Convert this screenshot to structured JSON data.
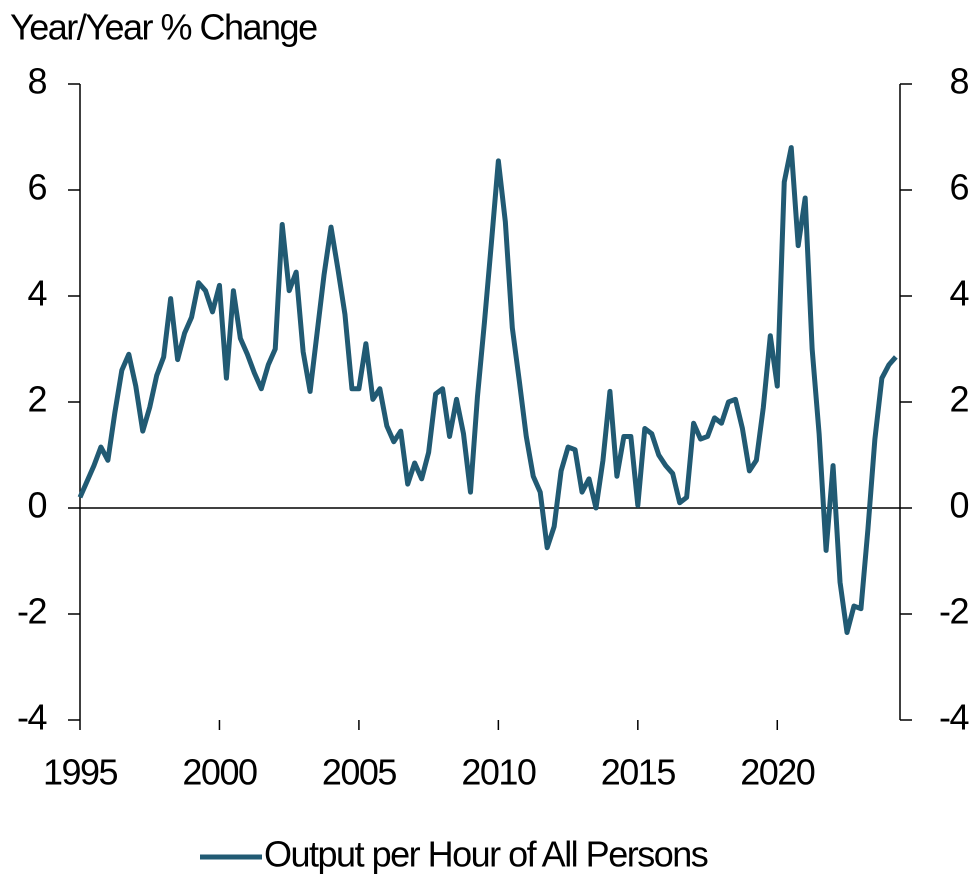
{
  "chart_data": {
    "type": "line",
    "ylabel": "Year/Year % Change",
    "x": [
      1995,
      1995.25,
      1995.5,
      1995.75,
      1996,
      1996.25,
      1996.5,
      1996.75,
      1997,
      1997.25,
      1997.5,
      1997.75,
      1998,
      1998.25,
      1998.5,
      1998.75,
      1999,
      1999.25,
      1999.5,
      1999.75,
      2000,
      2000.25,
      2000.5,
      2000.75,
      2001,
      2001.25,
      2001.5,
      2001.75,
      2002,
      2002.25,
      2002.5,
      2002.75,
      2003,
      2003.25,
      2003.5,
      2003.75,
      2004,
      2004.25,
      2004.5,
      2004.75,
      2005,
      2005.25,
      2005.5,
      2005.75,
      2006,
      2006.25,
      2006.5,
      2006.75,
      2007,
      2007.25,
      2007.5,
      2007.75,
      2008,
      2008.25,
      2008.5,
      2008.75,
      2009,
      2009.25,
      2009.5,
      2009.75,
      2010,
      2010.25,
      2010.5,
      2010.75,
      2011,
      2011.25,
      2011.5,
      2011.75,
      2012,
      2012.25,
      2012.5,
      2012.75,
      2013,
      2013.25,
      2013.5,
      2013.75,
      2014,
      2014.25,
      2014.5,
      2014.75,
      2015,
      2015.25,
      2015.5,
      2015.75,
      2016,
      2016.25,
      2016.5,
      2016.75,
      2017,
      2017.25,
      2017.5,
      2017.75,
      2018,
      2018.25,
      2018.5,
      2018.75,
      2019,
      2019.25,
      2019.5,
      2019.75,
      2020,
      2020.25,
      2020.5,
      2020.75,
      2021,
      2021.25,
      2021.5,
      2021.75,
      2022,
      2022.25,
      2022.5,
      2022.75,
      2023,
      2023.25,
      2023.5,
      2023.75,
      2024,
      2024.25
    ],
    "series": [
      {
        "name": "Output per Hour of All Persons",
        "color": "#215a73",
        "values": [
          0.2,
          0.5,
          0.8,
          1.15,
          0.9,
          1.8,
          2.6,
          2.9,
          2.3,
          1.45,
          1.9,
          2.5,
          2.85,
          3.95,
          2.8,
          3.3,
          3.6,
          4.25,
          4.1,
          3.7,
          4.2,
          2.45,
          4.1,
          3.2,
          2.9,
          2.55,
          2.25,
          2.7,
          3.0,
          5.35,
          4.1,
          4.45,
          2.95,
          2.2,
          3.3,
          4.4,
          5.3,
          4.5,
          3.65,
          2.25,
          2.25,
          3.1,
          2.05,
          2.25,
          1.55,
          1.25,
          1.45,
          0.45,
          0.85,
          0.55,
          1.05,
          2.15,
          2.25,
          1.35,
          2.05,
          1.4,
          0.3,
          2.1,
          3.5,
          5.0,
          6.55,
          5.4,
          3.4,
          2.4,
          1.35,
          0.6,
          0.3,
          -0.75,
          -0.35,
          0.7,
          1.15,
          1.1,
          0.3,
          0.55,
          0.0,
          0.9,
          2.2,
          0.6,
          1.35,
          1.35,
          0.05,
          1.5,
          1.4,
          1.0,
          0.8,
          0.65,
          0.1,
          0.2,
          1.6,
          1.3,
          1.35,
          1.7,
          1.6,
          2.0,
          2.05,
          1.5,
          0.7,
          0.9,
          1.9,
          3.25,
          2.3,
          6.15,
          6.8,
          4.95,
          5.85,
          3.0,
          1.4,
          -0.8,
          0.8,
          -1.4,
          -2.35,
          -1.85,
          -1.9,
          -0.4,
          1.3,
          2.45,
          2.7,
          2.85
        ]
      }
    ],
    "xlim": [
      1995,
      2024.4
    ],
    "xticks": [
      1995,
      2000,
      2005,
      2010,
      2015,
      2020
    ],
    "ylim": [
      -4,
      8
    ],
    "yticks": [
      -4,
      -2,
      0,
      2,
      4,
      6,
      8
    ],
    "y2lim": [
      -4,
      8
    ],
    "y2ticks": [
      -4,
      -2,
      0,
      2,
      4,
      6,
      8
    ],
    "legend": "bottom"
  }
}
